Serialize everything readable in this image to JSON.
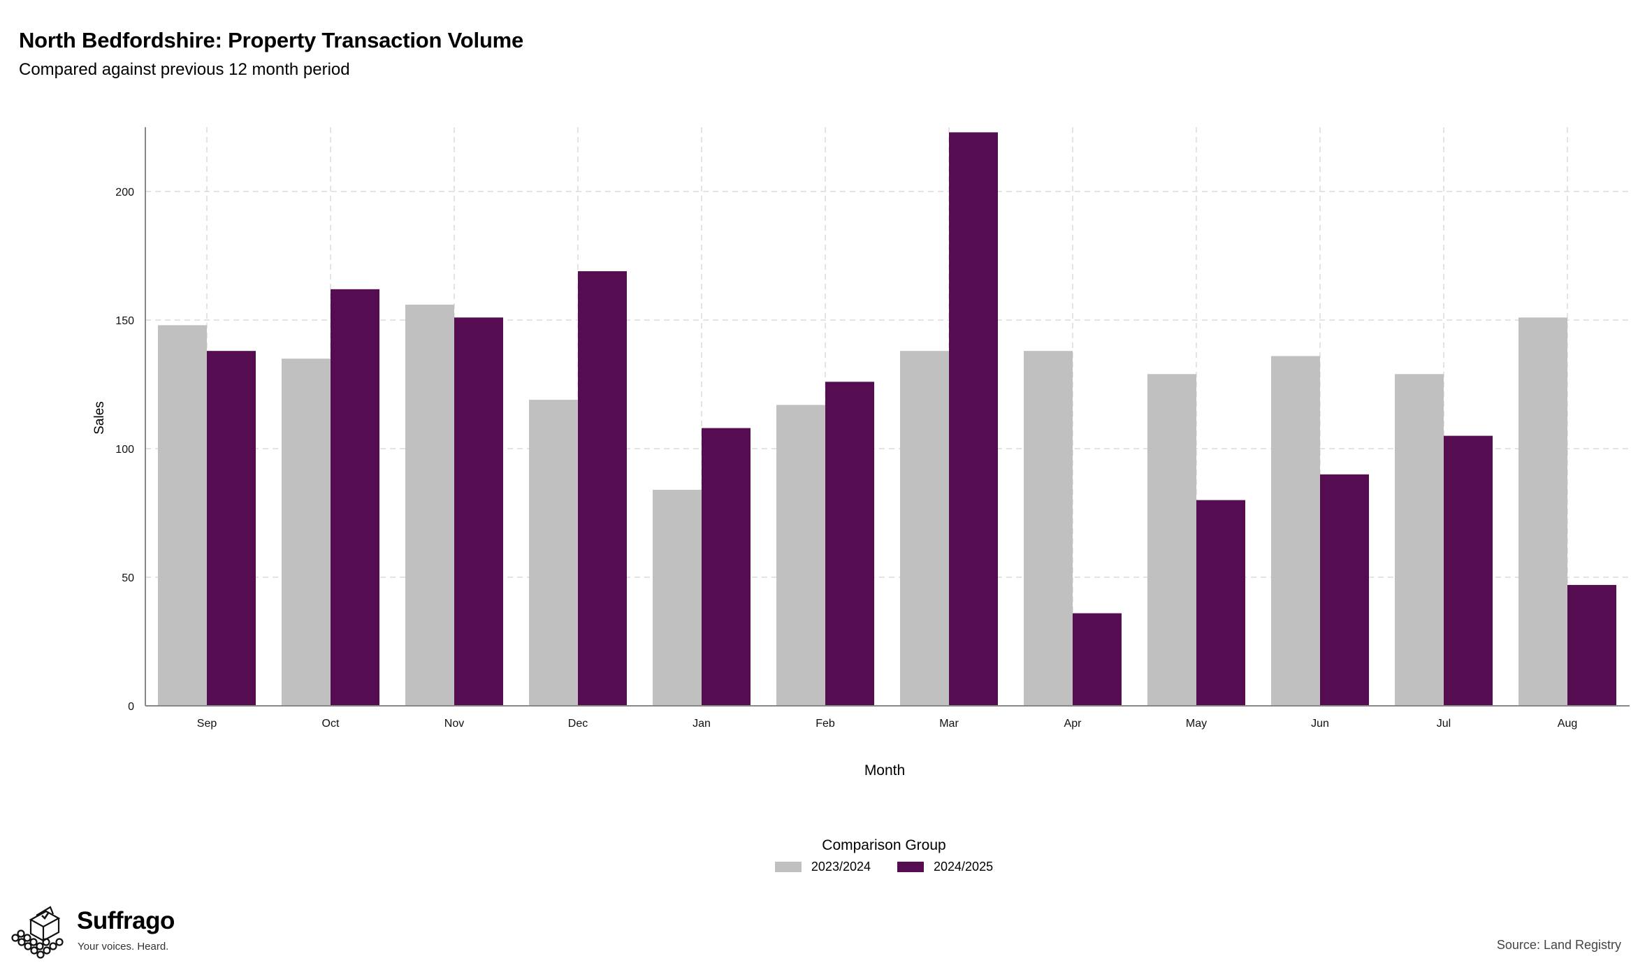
{
  "header": {
    "title": "North Bedfordshire: Property Transaction Volume",
    "subtitle": "Compared against previous 12 month period"
  },
  "legend": {
    "title": "Comparison Group",
    "items": [
      {
        "label": "2023/2024",
        "color": "#c0c0c0"
      },
      {
        "label": "2024/2025",
        "color": "#560c51"
      }
    ]
  },
  "footer": {
    "brand_name": "Suffrago",
    "brand_tagline": "Your voices. Heard.",
    "source": "Source: Land Registry",
    "brand_icon": "ballot-box-crowd-icon"
  },
  "chart_data": {
    "type": "bar",
    "title": "North Bedfordshire: Property Transaction Volume",
    "subtitle": "Compared against previous 12 month period",
    "xlabel": "Month",
    "ylabel": "Sales",
    "categories": [
      "Sep",
      "Oct",
      "Nov",
      "Dec",
      "Jan",
      "Feb",
      "Mar",
      "Apr",
      "May",
      "Jun",
      "Jul",
      "Aug"
    ],
    "series": [
      {
        "name": "2023/2024",
        "color": "#c0c0c0",
        "values": [
          148,
          135,
          156,
          119,
          84,
          117,
          138,
          138,
          129,
          136,
          129,
          151
        ]
      },
      {
        "name": "2024/2025",
        "color": "#560c51",
        "values": [
          138,
          162,
          151,
          169,
          108,
          126,
          223,
          36,
          80,
          90,
          105,
          47
        ]
      }
    ],
    "yticks": [
      0,
      50,
      100,
      150,
      200
    ],
    "ylim": [
      0,
      225
    ],
    "grid": true,
    "legend_position": "bottom"
  }
}
